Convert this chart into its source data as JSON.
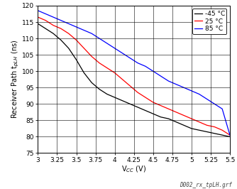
{
  "title": "",
  "xlabel": "V_{CC} (V)",
  "ylabel": "Receiver Path t_{pLH} (ns)",
  "xlim": [
    3.0,
    5.5
  ],
  "ylim": [
    75,
    120
  ],
  "xticks": [
    3.0,
    3.25,
    3.5,
    3.75,
    4.0,
    4.25,
    4.5,
    4.75,
    5.0,
    5.25,
    5.5
  ],
  "yticks": [
    75,
    80,
    85,
    90,
    95,
    100,
    105,
    110,
    115,
    120
  ],
  "legend_labels": [
    "-45 °C",
    "25 °C",
    "85 °C"
  ],
  "legend_colors": [
    "black",
    "red",
    "blue"
  ],
  "footnote": "D002_rx_tpLH.grf",
  "curves": {
    "black": {
      "x": [
        3.0,
        3.1,
        3.2,
        3.3,
        3.4,
        3.5,
        3.6,
        3.7,
        3.8,
        3.9,
        4.0,
        4.1,
        4.2,
        4.3,
        4.4,
        4.5,
        4.6,
        4.7,
        4.8,
        4.9,
        5.0,
        5.1,
        5.2,
        5.3,
        5.4,
        5.5
      ],
      "y": [
        114.5,
        113.0,
        111.5,
        109.5,
        107.0,
        103.5,
        99.5,
        96.5,
        94.5,
        93.0,
        92.0,
        91.0,
        90.0,
        89.0,
        88.0,
        87.0,
        86.0,
        85.5,
        84.5,
        83.5,
        82.5,
        82.0,
        81.5,
        81.0,
        80.5,
        80.0
      ]
    },
    "red": {
      "x": [
        3.0,
        3.1,
        3.2,
        3.3,
        3.4,
        3.5,
        3.6,
        3.7,
        3.8,
        3.9,
        4.0,
        4.1,
        4.2,
        4.3,
        4.4,
        4.5,
        4.6,
        4.7,
        4.8,
        4.9,
        5.0,
        5.1,
        5.2,
        5.3,
        5.4,
        5.5
      ],
      "y": [
        116.5,
        115.5,
        114.0,
        113.0,
        111.5,
        109.5,
        107.0,
        104.5,
        102.5,
        101.0,
        99.5,
        97.5,
        95.5,
        93.5,
        92.0,
        90.5,
        89.5,
        88.5,
        87.5,
        86.5,
        85.5,
        84.5,
        83.5,
        83.0,
        82.0,
        80.5
      ]
    },
    "blue": {
      "x": [
        3.0,
        3.1,
        3.2,
        3.3,
        3.4,
        3.5,
        3.6,
        3.7,
        3.8,
        3.9,
        4.0,
        4.1,
        4.2,
        4.3,
        4.4,
        4.5,
        4.6,
        4.7,
        4.8,
        4.9,
        5.0,
        5.1,
        5.2,
        5.3,
        5.4,
        5.5
      ],
      "y": [
        118.5,
        117.5,
        116.5,
        115.5,
        114.5,
        113.5,
        112.5,
        111.5,
        110.0,
        108.5,
        107.0,
        105.5,
        104.0,
        102.5,
        101.5,
        100.0,
        98.5,
        97.0,
        96.0,
        95.0,
        94.0,
        93.0,
        91.5,
        90.0,
        88.5,
        80.5
      ]
    }
  },
  "background_color": "#ffffff",
  "grid_color": "#000000",
  "font_size": 6.5,
  "line_width": 0.9
}
